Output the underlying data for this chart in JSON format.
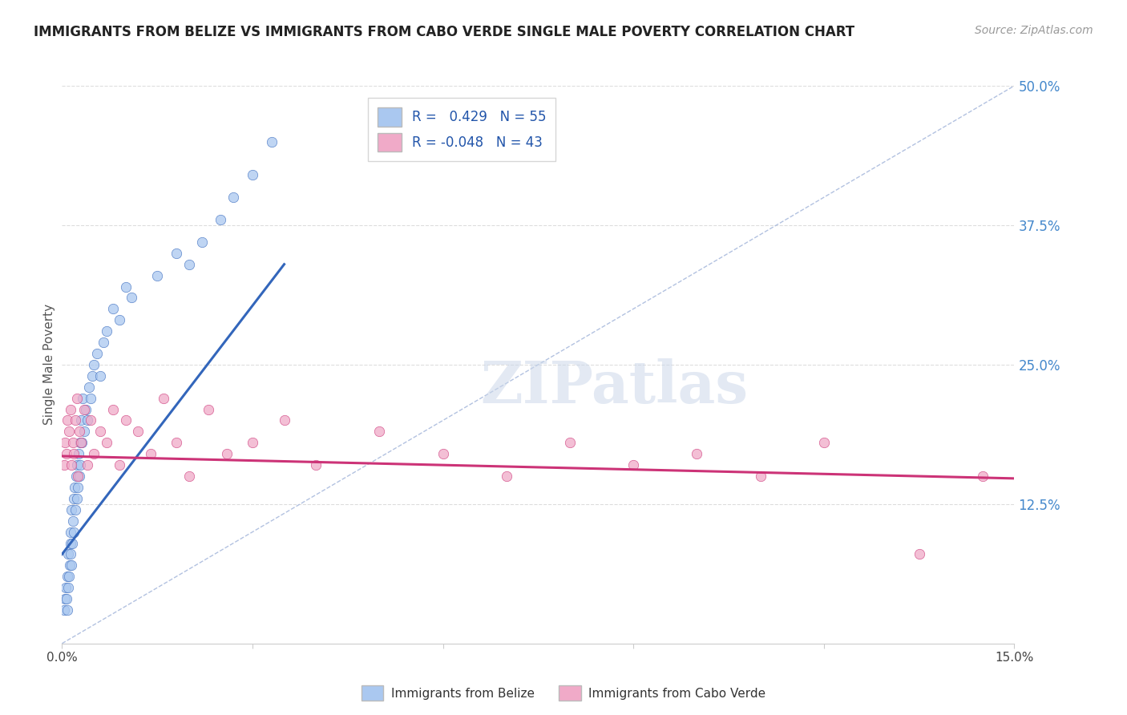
{
  "title": "IMMIGRANTS FROM BELIZE VS IMMIGRANTS FROM CABO VERDE SINGLE MALE POVERTY CORRELATION CHART",
  "source_text": "Source: ZipAtlas.com",
  "ylabel": "Single Male Poverty",
  "watermark": "ZIPatlas",
  "legend_label_1": "Immigrants from Belize",
  "legend_label_2": "Immigrants from Cabo Verde",
  "R1": 0.429,
  "N1": 55,
  "R2": -0.048,
  "N2": 43,
  "color1": "#aac8f0",
  "color2": "#f0aac8",
  "line_color1": "#3366bb",
  "line_color2": "#cc3377",
  "ref_line_color": "#aabbdd",
  "title_color": "#222222",
  "right_tick_color": "#4488cc",
  "background_color": "#ffffff",
  "xlim": [
    0.0,
    0.15
  ],
  "ylim": [
    0.0,
    0.5
  ],
  "xticks": [
    0.0,
    0.03,
    0.06,
    0.09,
    0.12,
    0.15
  ],
  "xticklabels": [
    "0.0%",
    "",
    "",
    "",
    "",
    "15.0%"
  ],
  "yticks_right": [
    0.125,
    0.25,
    0.375,
    0.5
  ],
  "ytick_labels_right": [
    "12.5%",
    "25.0%",
    "37.5%",
    "50.0%"
  ],
  "belize_x": [
    0.0003,
    0.0005,
    0.0006,
    0.0007,
    0.0008,
    0.0009,
    0.001,
    0.001,
    0.0011,
    0.0012,
    0.0013,
    0.0013,
    0.0014,
    0.0015,
    0.0015,
    0.0016,
    0.0017,
    0.0018,
    0.0019,
    0.002,
    0.0021,
    0.0022,
    0.0023,
    0.0024,
    0.0025,
    0.0026,
    0.0027,
    0.0028,
    0.0029,
    0.003,
    0.0031,
    0.0032,
    0.0035,
    0.0038,
    0.004,
    0.0042,
    0.0045,
    0.0048,
    0.005,
    0.0055,
    0.006,
    0.0065,
    0.007,
    0.008,
    0.009,
    0.01,
    0.011,
    0.015,
    0.018,
    0.02,
    0.022,
    0.025,
    0.027,
    0.03,
    0.033
  ],
  "belize_y": [
    0.03,
    0.04,
    0.05,
    0.04,
    0.06,
    0.03,
    0.05,
    0.08,
    0.06,
    0.07,
    0.09,
    0.08,
    0.1,
    0.07,
    0.12,
    0.09,
    0.11,
    0.13,
    0.1,
    0.14,
    0.12,
    0.15,
    0.13,
    0.16,
    0.14,
    0.17,
    0.15,
    0.18,
    0.16,
    0.2,
    0.18,
    0.22,
    0.19,
    0.21,
    0.2,
    0.23,
    0.22,
    0.24,
    0.25,
    0.26,
    0.24,
    0.27,
    0.28,
    0.3,
    0.29,
    0.32,
    0.31,
    0.33,
    0.35,
    0.34,
    0.36,
    0.38,
    0.4,
    0.42,
    0.45
  ],
  "caboverde_x": [
    0.0003,
    0.0005,
    0.0007,
    0.0009,
    0.0011,
    0.0013,
    0.0015,
    0.0017,
    0.0019,
    0.0021,
    0.0023,
    0.0025,
    0.0027,
    0.003,
    0.0035,
    0.004,
    0.0045,
    0.005,
    0.006,
    0.007,
    0.008,
    0.009,
    0.01,
    0.012,
    0.014,
    0.016,
    0.018,
    0.02,
    0.023,
    0.026,
    0.03,
    0.035,
    0.04,
    0.05,
    0.06,
    0.07,
    0.08,
    0.09,
    0.1,
    0.11,
    0.12,
    0.135,
    0.145
  ],
  "caboverde_y": [
    0.16,
    0.18,
    0.17,
    0.2,
    0.19,
    0.21,
    0.16,
    0.18,
    0.17,
    0.2,
    0.22,
    0.15,
    0.19,
    0.18,
    0.21,
    0.16,
    0.2,
    0.17,
    0.19,
    0.18,
    0.21,
    0.16,
    0.2,
    0.19,
    0.17,
    0.22,
    0.18,
    0.15,
    0.21,
    0.17,
    0.18,
    0.2,
    0.16,
    0.19,
    0.17,
    0.15,
    0.18,
    0.16,
    0.17,
    0.15,
    0.18,
    0.08,
    0.15
  ],
  "belize_trend_x": [
    0.0,
    0.035
  ],
  "belize_trend_y": [
    0.08,
    0.34
  ],
  "caboverde_trend_x": [
    0.0,
    0.15
  ],
  "caboverde_trend_y": [
    0.168,
    0.148
  ]
}
